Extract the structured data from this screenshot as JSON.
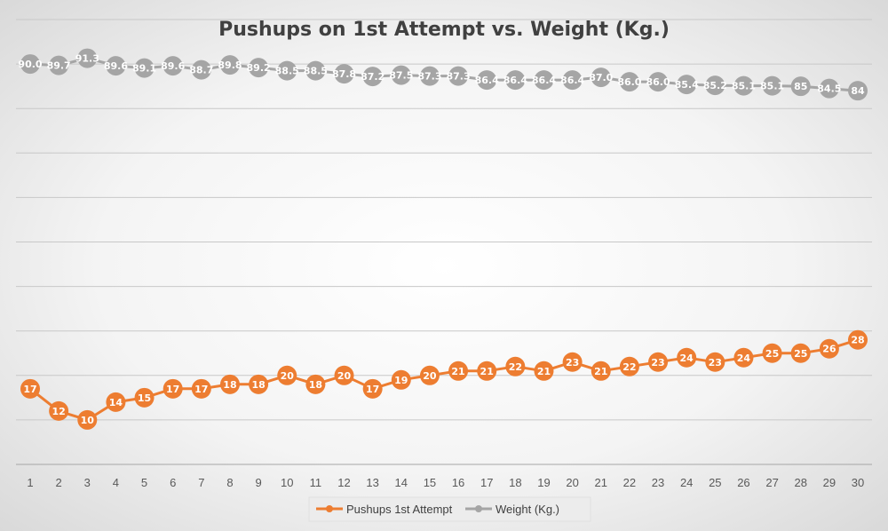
{
  "chart_data": {
    "type": "line",
    "title": "Pushups on 1st Attempt vs. Weight (Kg.)",
    "x": [
      1,
      2,
      3,
      4,
      5,
      6,
      7,
      8,
      9,
      10,
      11,
      12,
      13,
      14,
      15,
      16,
      17,
      18,
      19,
      20,
      21,
      22,
      23,
      24,
      25,
      26,
      27,
      28,
      29,
      30
    ],
    "ylim": [
      0,
      100
    ],
    "grid": true,
    "legend_position": "bottom",
    "series": [
      {
        "name": "Pushups 1st Attempt",
        "color": "#ED7D31",
        "values": [
          17,
          12,
          10,
          14,
          15,
          17,
          17,
          18,
          18,
          20,
          18,
          20,
          17,
          19,
          20,
          21,
          21,
          22,
          21,
          23,
          21,
          22,
          23,
          24,
          23,
          24,
          25,
          25,
          26,
          28
        ],
        "labels": [
          "17",
          "12",
          "10",
          "14",
          "15",
          "17",
          "17",
          "18",
          "18",
          "20",
          "18",
          "20",
          "17",
          "19",
          "20",
          "21",
          "21",
          "22",
          "21",
          "23",
          "21",
          "22",
          "23",
          "24",
          "23",
          "24",
          "25",
          "25",
          "26",
          "28"
        ]
      },
      {
        "name": "Weight (Kg.)",
        "color": "#A5A5A5",
        "values": [
          90.0,
          89.7,
          91.3,
          89.6,
          89.1,
          89.6,
          88.7,
          89.8,
          89.2,
          88.5,
          88.5,
          87.8,
          87.2,
          87.5,
          87.3,
          87.3,
          86.4,
          86.4,
          86.4,
          86.4,
          87.0,
          86.0,
          86.0,
          85.4,
          85.2,
          85.1,
          85.1,
          85,
          84.5,
          84
        ],
        "labels": [
          "90.0",
          "89.7",
          "91.3",
          "89.6",
          "89.1",
          "89.6",
          "88.7",
          "89.8",
          "89.2",
          "88.5",
          "88.5",
          "87.8",
          "87.2",
          "87.5",
          "87.3",
          "87.3",
          "86.4",
          "86.4",
          "86.4",
          "86.4",
          "87.0",
          "86.0",
          "86.0",
          "85.4",
          "85.2",
          "85.1",
          "85.1",
          "85",
          "84.5",
          "84"
        ]
      }
    ]
  }
}
